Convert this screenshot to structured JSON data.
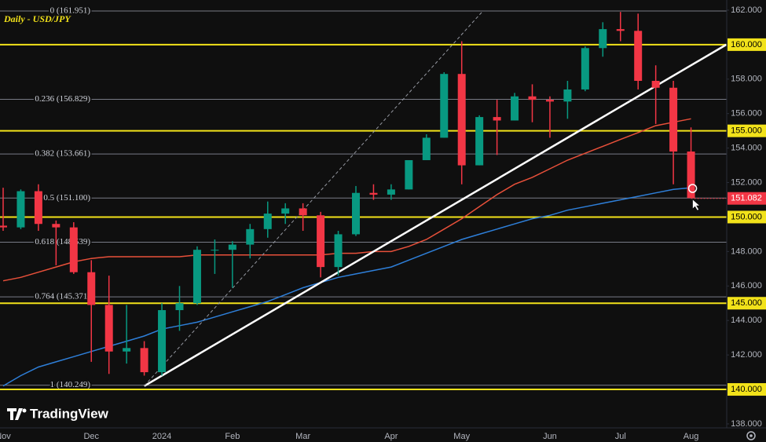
{
  "chart_data": {
    "type": "candlestick",
    "title": "Daily - USD/JPY",
    "watermark": "TradingView",
    "up_color": "#089981",
    "down_color": "#f23645",
    "categories": [
      "Nov",
      null,
      null,
      null,
      null,
      "Dec",
      null,
      null,
      null,
      "2024",
      null,
      null,
      null,
      "Feb",
      null,
      null,
      null,
      "Mar",
      null,
      null,
      null,
      null,
      "Apr",
      null,
      null,
      null,
      "May",
      null,
      null,
      null,
      null,
      "Jun",
      null,
      null,
      null,
      "Jul",
      null,
      null,
      null,
      "Aug"
    ],
    "candles": [
      {
        "open": 149.5,
        "high": 151.7,
        "low": 149.2,
        "close": 149.4
      },
      {
        "open": 149.4,
        "high": 151.6,
        "low": 149.3,
        "close": 151.5
      },
      {
        "open": 151.5,
        "high": 151.9,
        "low": 149.2,
        "close": 149.6
      },
      {
        "open": 149.6,
        "high": 149.8,
        "low": 147.2,
        "close": 149.4
      },
      {
        "open": 149.4,
        "high": 149.7,
        "low": 146.7,
        "close": 146.8
      },
      {
        "open": 146.8,
        "high": 147.5,
        "low": 141.6,
        "close": 144.9
      },
      {
        "open": 144.9,
        "high": 146.6,
        "low": 140.9,
        "close": 142.2
      },
      {
        "open": 142.2,
        "high": 144.9,
        "low": 141.5,
        "close": 142.4
      },
      {
        "open": 142.4,
        "high": 142.8,
        "low": 140.8,
        "close": 141.0
      },
      {
        "open": 141.0,
        "high": 145.0,
        "low": 140.8,
        "close": 144.6
      },
      {
        "open": 144.6,
        "high": 146.0,
        "low": 143.4,
        "close": 145.0
      },
      {
        "open": 145.0,
        "high": 148.3,
        "low": 144.9,
        "close": 148.1
      },
      {
        "open": 148.1,
        "high": 148.7,
        "low": 146.7,
        "close": 148.1
      },
      {
        "open": 148.1,
        "high": 148.6,
        "low": 145.9,
        "close": 148.4
      },
      {
        "open": 148.4,
        "high": 149.6,
        "low": 147.6,
        "close": 149.3
      },
      {
        "open": 149.3,
        "high": 150.9,
        "low": 148.8,
        "close": 150.2
      },
      {
        "open": 150.2,
        "high": 150.8,
        "low": 149.6,
        "close": 150.5
      },
      {
        "open": 150.5,
        "high": 150.8,
        "low": 149.2,
        "close": 150.1
      },
      {
        "open": 150.1,
        "high": 150.3,
        "low": 146.5,
        "close": 147.1
      },
      {
        "open": 147.1,
        "high": 149.2,
        "low": 146.6,
        "close": 149.0
      },
      {
        "open": 149.0,
        "high": 151.8,
        "low": 148.9,
        "close": 151.4
      },
      {
        "open": 151.4,
        "high": 151.9,
        "low": 151.0,
        "close": 151.3
      },
      {
        "open": 151.3,
        "high": 151.9,
        "low": 151.0,
        "close": 151.6
      },
      {
        "open": 151.6,
        "high": 153.3,
        "low": 151.6,
        "close": 153.3
      },
      {
        "open": 153.3,
        "high": 154.8,
        "low": 153.5,
        "close": 154.6
      },
      {
        "open": 154.6,
        "high": 158.4,
        "low": 154.6,
        "close": 158.3
      },
      {
        "open": 158.3,
        "high": 160.2,
        "low": 151.9,
        "close": 153.0
      },
      {
        "open": 153.0,
        "high": 155.9,
        "low": 153.0,
        "close": 155.8
      },
      {
        "open": 155.8,
        "high": 156.8,
        "low": 153.6,
        "close": 155.6
      },
      {
        "open": 155.6,
        "high": 157.2,
        "low": 155.6,
        "close": 157.0
      },
      {
        "open": 157.0,
        "high": 157.7,
        "low": 155.5,
        "close": 156.8
      },
      {
        "open": 156.8,
        "high": 157.0,
        "low": 154.6,
        "close": 156.7
      },
      {
        "open": 156.7,
        "high": 157.9,
        "low": 155.7,
        "close": 157.4
      },
      {
        "open": 157.4,
        "high": 159.9,
        "low": 157.3,
        "close": 159.8
      },
      {
        "open": 159.8,
        "high": 161.3,
        "low": 159.3,
        "close": 160.9
      },
      {
        "open": 160.9,
        "high": 161.9,
        "low": 160.2,
        "close": 160.8
      },
      {
        "open": 160.8,
        "high": 161.8,
        "low": 157.4,
        "close": 157.9
      },
      {
        "open": 157.9,
        "high": 158.8,
        "low": 155.4,
        "close": 157.5
      },
      {
        "open": 157.5,
        "high": 157.9,
        "low": 151.9,
        "close": 153.8
      },
      {
        "open": 153.8,
        "high": 155.2,
        "low": 151.1,
        "close": 151.1
      }
    ],
    "ma_series": [
      {
        "color": "#e8503a",
        "values": [
          146.3,
          146.5,
          146.8,
          147.1,
          147.4,
          147.6,
          147.7,
          147.7,
          147.7,
          147.7,
          147.7,
          147.8,
          147.8,
          147.8,
          147.8,
          147.8,
          147.8,
          147.8,
          147.8,
          147.9,
          147.9,
          148.0,
          148.0,
          148.3,
          148.7,
          149.3,
          149.9,
          150.6,
          151.3,
          151.9,
          152.3,
          152.8,
          153.3,
          153.7,
          154.1,
          154.5,
          154.9,
          155.3,
          155.5,
          155.7
        ]
      },
      {
        "color": "#2e7fd9",
        "values": [
          140.2,
          140.8,
          141.3,
          141.6,
          141.9,
          142.2,
          142.5,
          142.8,
          143.1,
          143.5,
          143.7,
          143.9,
          144.2,
          144.5,
          144.8,
          145.1,
          145.5,
          145.9,
          146.2,
          146.5,
          146.7,
          146.9,
          147.1,
          147.5,
          147.9,
          148.3,
          148.7,
          149.0,
          149.3,
          149.6,
          149.9,
          150.1,
          150.4,
          150.6,
          150.8,
          151.0,
          151.2,
          151.4,
          151.6,
          151.7
        ]
      }
    ],
    "trendlines": [
      {
        "color": "#ffffff",
        "style": "solid",
        "from": [
          8,
          140.2
        ],
        "to": [
          41,
          160.0
        ]
      },
      {
        "color": "#9598a1",
        "style": "dashed",
        "from": [
          8,
          140.2
        ],
        "to": [
          27.2,
          161.951
        ]
      }
    ],
    "fib_levels": [
      {
        "value": 161.951,
        "label": "0 (161.951)"
      },
      {
        "value": 156.829,
        "label": "0.236 (156.829)"
      },
      {
        "value": 153.661,
        "label": "0.382 (153.661)"
      },
      {
        "value": 151.1,
        "label": "0.5 (151.100)"
      },
      {
        "value": 148.539,
        "label": "0.618 (148.539)"
      },
      {
        "value": 145.371,
        "label": "0.764 (145.371)"
      },
      {
        "value": 140.249,
        "label": "1 (140.249)"
      }
    ],
    "levels_color": "#f2e21a",
    "levels": [
      {
        "value": 160,
        "label": "160.000"
      },
      {
        "value": 155,
        "label": "155.000"
      },
      {
        "value": 150,
        "label": "150.000"
      },
      {
        "value": 145,
        "label": "145.000"
      },
      {
        "value": 140,
        "label": "140.000"
      }
    ],
    "last_price": 151.082,
    "ylim": [
      137.77,
      162.59
    ],
    "yticks": [
      {
        "value": 138,
        "label": "138.000"
      },
      {
        "value": 142,
        "label": "142.000"
      },
      {
        "value": 144,
        "label": "144.000"
      },
      {
        "value": 146,
        "label": "146.000"
      },
      {
        "value": 148,
        "label": "148.000"
      },
      {
        "value": 152,
        "label": "152.000"
      },
      {
        "value": 154,
        "label": "154.000"
      },
      {
        "value": 156,
        "label": "156.000"
      },
      {
        "value": 158,
        "label": "158.000"
      },
      {
        "value": 162,
        "label": "162.000"
      }
    ]
  }
}
